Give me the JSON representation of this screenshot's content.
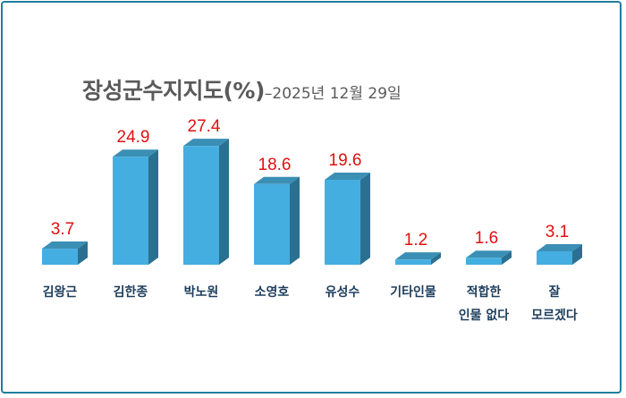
{
  "chart_data": {
    "type": "bar",
    "title": "장성군수지지도(%)",
    "subtitle": "–2025년 12월 29일",
    "categories": [
      [
        "김왕근"
      ],
      [
        "김한종"
      ],
      [
        "박노원"
      ],
      [
        "소영호"
      ],
      [
        "유성수"
      ],
      [
        "기타인물"
      ],
      [
        "적합한",
        "인물 없다"
      ],
      [
        "잘",
        "모르겠다"
      ]
    ],
    "values": [
      3.7,
      24.9,
      27.4,
      18.6,
      19.6,
      1.2,
      1.6,
      3.1
    ],
    "value_labels": [
      "3.7",
      "24.9",
      "27.4",
      "18.6",
      "19.6",
      "1.2",
      "1.6",
      "3.1"
    ],
    "xlabel": "",
    "ylabel": "",
    "grid": false,
    "colors": {
      "bar_front": "#45aee0",
      "bar_side": "#2b7090",
      "bar_top": "#3b8fb5",
      "value_label": "#e01010",
      "border": "#1f7e9c"
    }
  }
}
